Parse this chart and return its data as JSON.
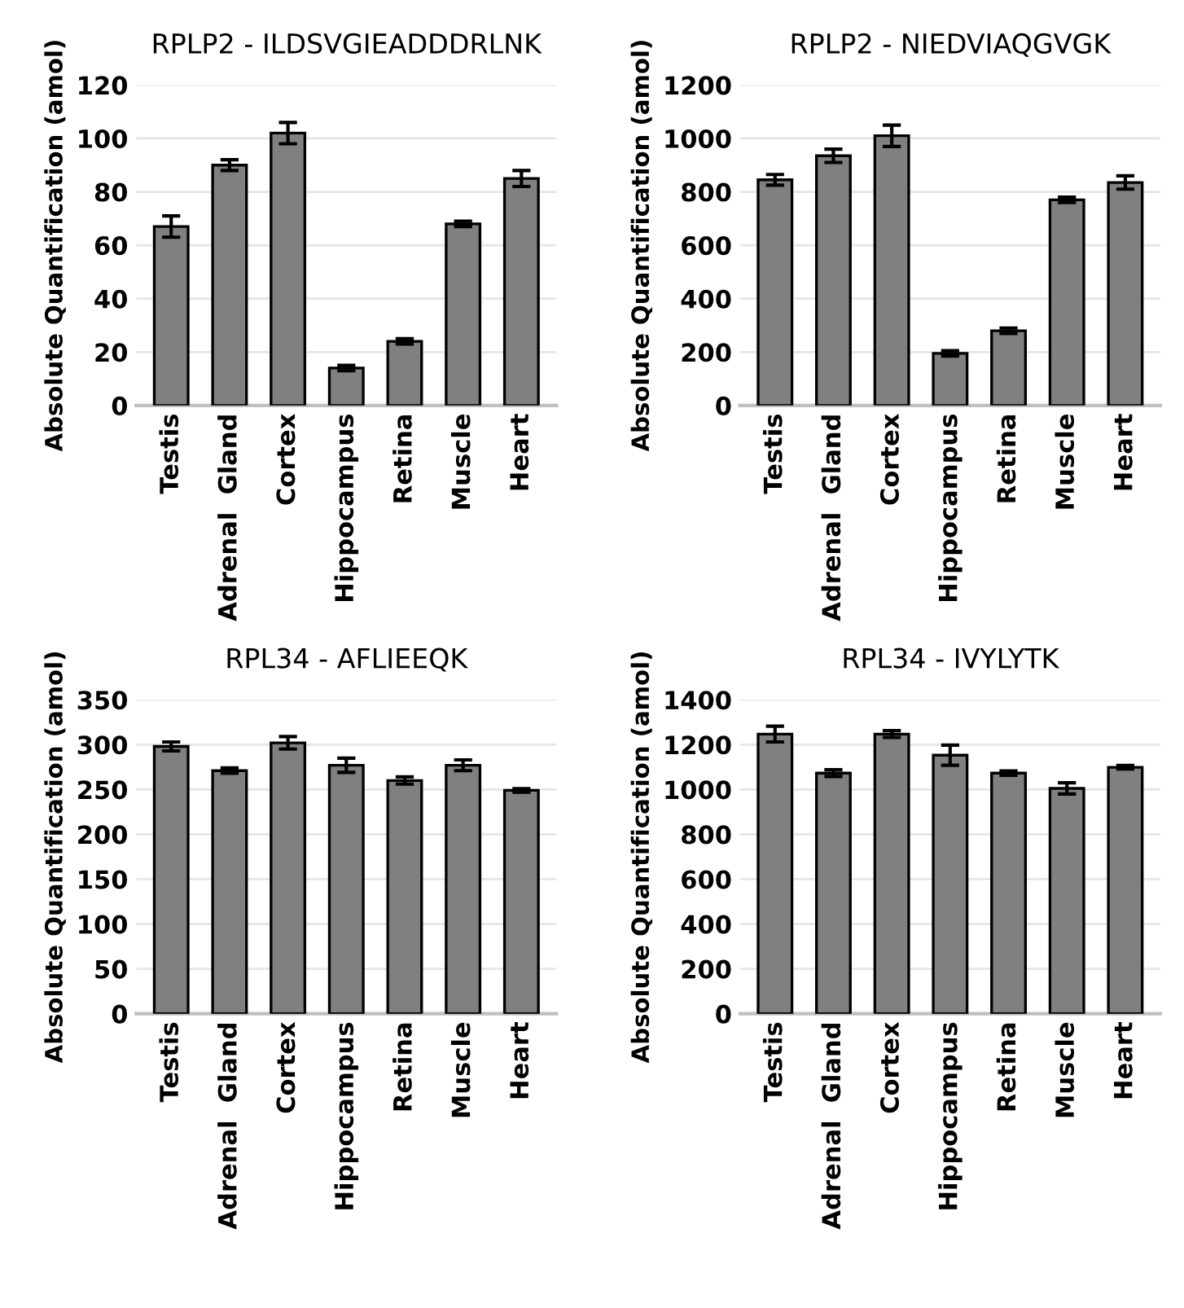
{
  "chart_data": [
    {
      "type": "bar",
      "title": "RPLP2 - ILDSVGIEADDDRLNK",
      "ylabel": "Absolute Quantification (amol)",
      "categories": [
        "Testis",
        "Adrenal  Gland",
        "Cortex",
        "Hippocampus",
        "Retina",
        "Muscle",
        "Heart"
      ],
      "color": "#808080",
      "values": [
        67,
        90,
        102,
        14,
        24,
        68,
        85
      ],
      "errors": [
        4,
        2,
        4,
        1,
        1,
        1,
        3
      ],
      "ylim": [
        0,
        120
      ],
      "yticks": [
        0,
        20,
        40,
        60,
        80,
        100,
        120
      ],
      "grid": "y"
    },
    {
      "type": "bar",
      "title": "RPLP2 - NIEDVIAQGVGK",
      "ylabel": "Absolute Quantification (amol)",
      "categories": [
        "Testis",
        "Adrenal  Gland",
        "Cortex",
        "Hippocampus",
        "Retina",
        "Muscle",
        "Heart"
      ],
      "color": "#808080",
      "values": [
        845,
        935,
        1010,
        195,
        280,
        770,
        835
      ],
      "errors": [
        20,
        25,
        40,
        10,
        10,
        10,
        25
      ],
      "ylim": [
        0,
        1200
      ],
      "yticks": [
        0,
        200,
        400,
        600,
        800,
        1000,
        1200
      ],
      "grid": "y"
    },
    {
      "type": "bar",
      "title": "RPL34 - AFLIEEQK",
      "ylabel": "Absolute Quantification (amol)",
      "categories": [
        "Testis",
        "Adrenal  Gland",
        "Cortex",
        "Hippocampus",
        "Retina",
        "Muscle",
        "Heart"
      ],
      "color": "#808080",
      "values": [
        298,
        271,
        302,
        277,
        260,
        277,
        249
      ],
      "errors": [
        5,
        3,
        7,
        8,
        4,
        6,
        2
      ],
      "ylim": [
        0,
        350
      ],
      "yticks": [
        0,
        50,
        100,
        150,
        200,
        250,
        300,
        350
      ],
      "grid": "y"
    },
    {
      "type": "bar",
      "title": "RPL34 - IVYLYTK",
      "ylabel": "Absolute Quantification (amol)",
      "categories": [
        "Testis",
        "Adrenal  Gland",
        "Cortex",
        "Hippocampus",
        "Retina",
        "Muscle",
        "Heart"
      ],
      "color": "#808080",
      "values": [
        1247,
        1073,
        1247,
        1153,
        1073,
        1005,
        1099
      ],
      "errors": [
        35,
        15,
        15,
        45,
        10,
        25,
        8
      ],
      "ylim": [
        0,
        1400
      ],
      "yticks": [
        0,
        200,
        400,
        600,
        800,
        1000,
        1200,
        1400
      ],
      "grid": "y"
    }
  ]
}
